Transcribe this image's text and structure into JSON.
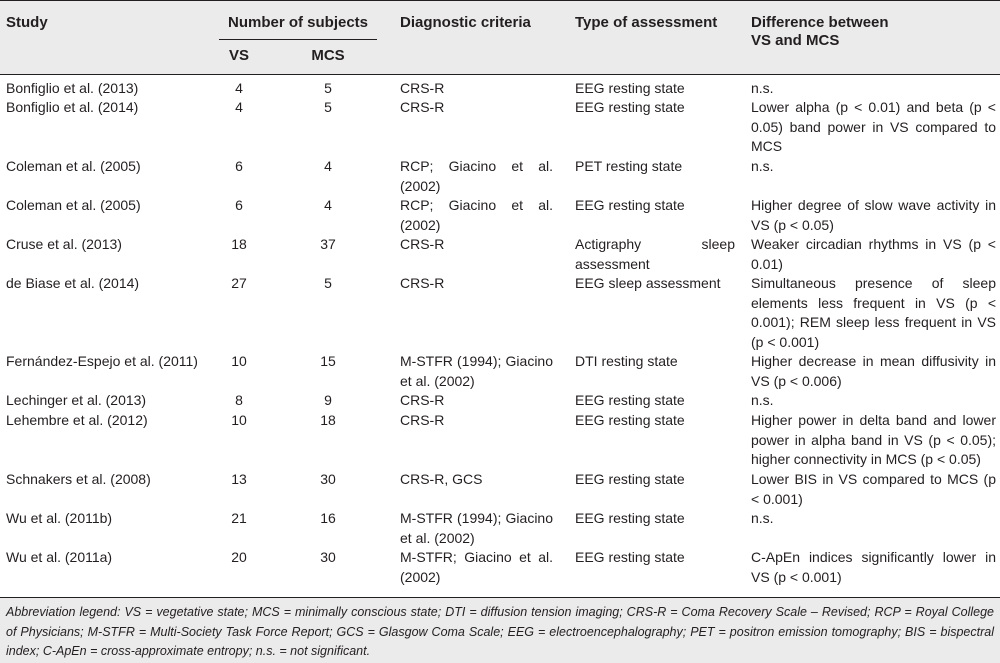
{
  "headers": {
    "study": "Study",
    "num_subjects": "Number of subjects",
    "vs": "VS",
    "mcs": "MCS",
    "criteria": "Diagnostic criteria",
    "assessment": "Type of assessment",
    "difference_line1": "Difference between",
    "difference_line2": "VS and MCS"
  },
  "rows": [
    {
      "study": "Bonfiglio et al. (2013)",
      "vs": "4",
      "mcs": "5",
      "criteria": "CRS-R",
      "assessment": "EEG resting state",
      "difference": "n.s."
    },
    {
      "study": "Bonfiglio et al. (2014)",
      "vs": "4",
      "mcs": "5",
      "criteria": "CRS-R",
      "assessment": "EEG resting state",
      "difference": "Lower alpha (p < 0.01) and beta (p < 0.05) band power in VS compared to MCS"
    },
    {
      "study": "Coleman et al. (2005)",
      "vs": "6",
      "mcs": "4",
      "criteria": "RCP; Giacino et al. (2002)",
      "assessment": "PET resting state",
      "difference": "n.s."
    },
    {
      "study": "Coleman et al. (2005)",
      "vs": "6",
      "mcs": "4",
      "criteria": "RCP; Giacino et al. (2002)",
      "assessment": "EEG resting state",
      "difference": "Higher degree of slow wave activity in VS (p < 0.05)"
    },
    {
      "study": "Cruse et al. (2013)",
      "vs": "18",
      "mcs": "37",
      "criteria": "CRS-R",
      "assessment": "Actigraphy sleep assessment",
      "difference": "Weaker circadian rhythms in VS (p < 0.01)"
    },
    {
      "study": "de Biase et al. (2014)",
      "vs": "27",
      "mcs": "5",
      "criteria": "CRS-R",
      "assessment": "EEG sleep assessment",
      "difference": "Simultaneous presence of sleep elements less frequent in VS (p < 0.001); REM sleep less frequent in VS (p < 0.001)"
    },
    {
      "study": "Fernández-Espejo et al. (2011)",
      "vs": "10",
      "mcs": "15",
      "criteria": "M-STFR (1994); Giacino et al. (2002)",
      "assessment": "DTI resting state",
      "difference": "Higher decrease in mean diffusivity in VS (p < 0.006)"
    },
    {
      "study": "Lechinger et al. (2013)",
      "vs": "8",
      "mcs": "9",
      "criteria": "CRS-R",
      "assessment": "EEG resting state",
      "difference": "n.s."
    },
    {
      "study": "Lehembre et al. (2012)",
      "vs": "10",
      "mcs": "18",
      "criteria": "CRS-R",
      "assessment": "EEG resting state",
      "difference": "Higher power in delta band and lower power in alpha band in VS (p < 0.05); higher connectivity in MCS (p < 0.05)"
    },
    {
      "study": "Schnakers et al. (2008)",
      "vs": "13",
      "mcs": "30",
      "criteria": "CRS-R, GCS",
      "assessment": "EEG resting state",
      "difference": "Lower BIS in VS compared to MCS (p < 0.001)"
    },
    {
      "study": "Wu et al. (2011b)",
      "vs": "21",
      "mcs": "16",
      "criteria": "M-STFR (1994); Giacino et al. (2002)",
      "assessment": "EEG resting state",
      "difference": "n.s."
    },
    {
      "study": "Wu et al. (2011a)",
      "vs": "20",
      "mcs": "30",
      "criteria": "M-STFR; Giacino et al. (2002)",
      "assessment": "EEG resting state",
      "difference": "C-ApEn indices significantly lower in VS (p < 0.001)"
    }
  ],
  "legend": "Abbreviation legend: VS = vegetative state; MCS = minimally conscious state; DTI = diffusion tension imaging; CRS-R = Coma Recovery Scale – Revised; RCP = Royal College of Physicians; M-STFR = Multi-Society Task Force Report; GCS = Glasgow Coma Scale; EEG = electroencephalography; PET = positron emission tomography; BIS = bispectral index; C-ApEn = cross-approximate entropy; n.s. = not significant.",
  "colors": {
    "header_band": "#ebebeb",
    "text": "#231f20"
  }
}
